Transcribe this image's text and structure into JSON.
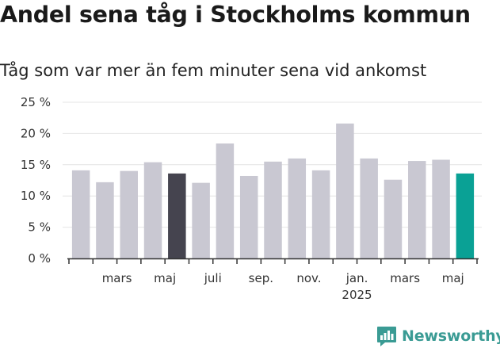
{
  "header": {
    "title": "Andel sena tåg i Stockholms kommun",
    "subtitle": "Tåg som var mer än fem minuter sena vid ankomst"
  },
  "brand": {
    "name": "Newsworthy",
    "color": "#3a9b94",
    "icon": "chart-bubble-icon"
  },
  "colors": {
    "default_bar": "#c9c8d2",
    "highlight_prev_year": "#45444f",
    "highlight_latest": "#0aa195",
    "grid": "#e4e4e4",
    "axis": "#333333"
  },
  "chart_data": {
    "type": "bar",
    "title": "Andel sena tåg i Stockholms kommun",
    "subtitle": "Tåg som var mer än fem minuter sena vid ankomst",
    "categories": [
      "2024-02",
      "2024-03",
      "2024-04",
      "2024-05",
      "2024-06",
      "2024-07",
      "2024-08",
      "2024-09",
      "2024-10",
      "2024-11",
      "2024-12",
      "2025-01",
      "2025-02",
      "2025-03",
      "2025-04",
      "2025-05",
      "2025-06"
    ],
    "values": [
      14.1,
      12.2,
      14.0,
      15.4,
      13.6,
      12.1,
      18.4,
      13.2,
      15.5,
      16.0,
      14.1,
      21.6,
      16.0,
      12.6,
      15.6,
      15.8,
      13.6
    ],
    "highlight": {
      "2024-06": "highlight_prev_year",
      "2025-06": "highlight_latest"
    },
    "ylim": [
      0,
      25
    ],
    "yticks": [
      0,
      5,
      10,
      15,
      20,
      25
    ],
    "ytick_labels": [
      "0 %",
      "5 %",
      "10 %",
      "15 %",
      "20 %",
      "25 %"
    ],
    "xtick_labels": [
      {
        "after_category": "2024-03",
        "label": "mars"
      },
      {
        "after_category": "2024-05",
        "label": "maj"
      },
      {
        "after_category": "2024-07",
        "label": "juli"
      },
      {
        "after_category": "2024-09",
        "label": "sep."
      },
      {
        "after_category": "2024-11",
        "label": "nov."
      },
      {
        "after_category": "2025-01",
        "label": "jan.",
        "sublabel": "2025"
      },
      {
        "after_category": "2025-03",
        "label": "mars"
      },
      {
        "after_category": "2025-05",
        "label": "maj"
      }
    ],
    "grid": true,
    "legend": "none",
    "xlabel": "",
    "ylabel": ""
  }
}
